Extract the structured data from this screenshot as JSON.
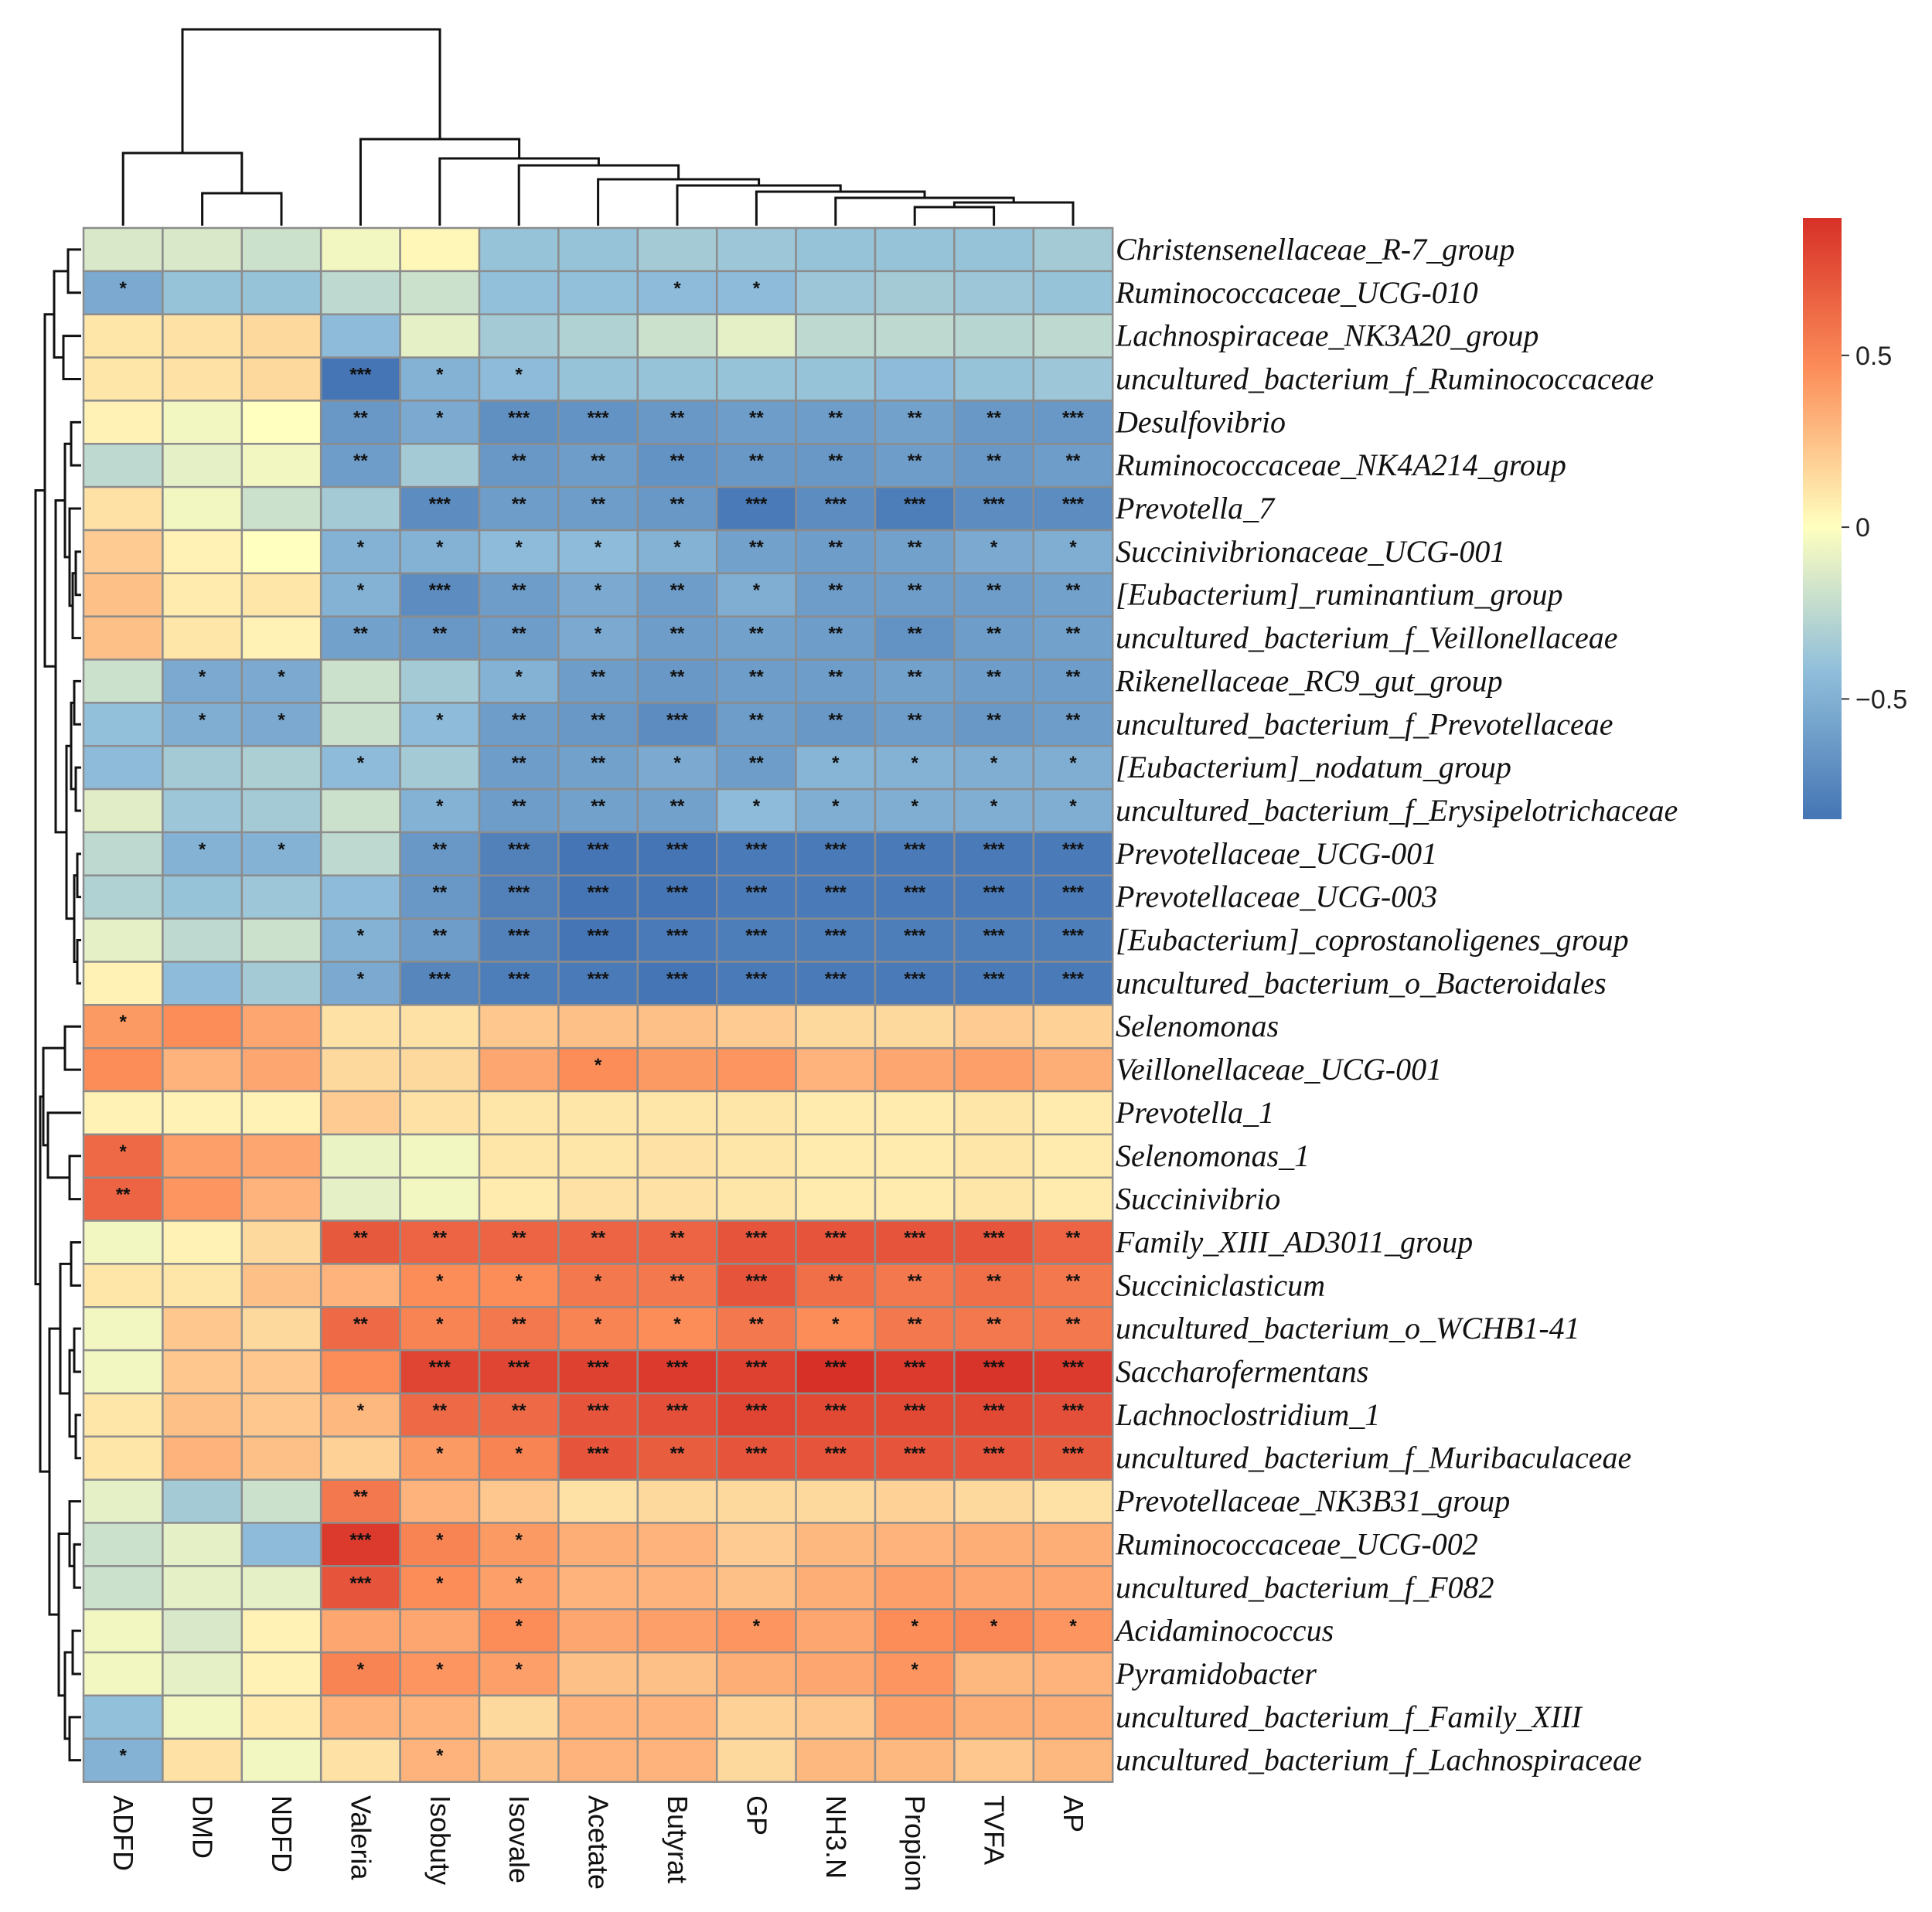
{
  "chart_data": {
    "type": "heatmap",
    "title": "",
    "columns": [
      "ADFD",
      "DMD",
      "NDFD",
      "Valeria",
      "Isobuty",
      "Isovale",
      "Acetate",
      "Butyrat",
      "GP",
      "NH3.N",
      "Propion",
      "TVFA",
      "AP"
    ],
    "rows": [
      "Christensenellaceae_R-7_group",
      "Ruminococcaceae_UCG-010",
      "Lachnospiraceae_NK3A20_group",
      "uncultured_bacterium_f_Ruminococcaceae",
      "Desulfovibrio",
      "Ruminococcaceae_NK4A214_group",
      "Prevotella_7",
      "Succinivibrionaceae_UCG-001",
      "[Eubacterium]_ruminantium_group",
      "uncultured_bacterium_f_Veillonellaceae",
      "Rikenellaceae_RC9_gut_group",
      "uncultured_bacterium_f_Prevotellaceae",
      "[Eubacterium]_nodatum_group",
      "uncultured_bacterium_f_Erysipelotrichaceae",
      "Prevotellaceae_UCG-001",
      "Prevotellaceae_UCG-003",
      "[Eubacterium]_coprostanoligenes_group",
      "uncultured_bacterium_o_Bacteroidales",
      "Selenomonas",
      "Veillonellaceae_UCG-001",
      "Prevotella_1",
      "Selenomonas_1",
      "Succinivibrio",
      "Family_XIII_AD3011_group",
      "Succiniclasticum",
      "uncultured_bacterium_o_WCHB1-41",
      "Saccharofermentans",
      "Lachnoclostridium_1",
      "uncultured_bacterium_f_Muribaculaceae",
      "Prevotellaceae_NK3B31_group",
      "Ruminococcaceae_UCG-002",
      "uncultured_bacterium_f_F082",
      "Acidaminococcus",
      "Pyramidobacter",
      "uncultured_bacterium_f_Family_XIII",
      "uncultured_bacterium_f_Lachnospiraceae"
    ],
    "values": [
      [
        -0.15,
        -0.15,
        -0.2,
        -0.05,
        0.03,
        -0.4,
        -0.4,
        -0.35,
        -0.38,
        -0.4,
        -0.4,
        -0.4,
        -0.35
      ],
      [
        -0.55,
        -0.4,
        -0.4,
        -0.25,
        -0.2,
        -0.42,
        -0.42,
        -0.45,
        -0.45,
        -0.38,
        -0.35,
        -0.38,
        -0.4
      ],
      [
        0.1,
        0.12,
        0.15,
        -0.45,
        -0.1,
        -0.35,
        -0.3,
        -0.2,
        -0.1,
        -0.25,
        -0.25,
        -0.28,
        -0.25
      ],
      [
        0.1,
        0.12,
        0.15,
        -0.85,
        -0.5,
        -0.45,
        -0.4,
        -0.4,
        -0.4,
        -0.4,
        -0.45,
        -0.4,
        -0.38
      ],
      [
        0.05,
        -0.05,
        0.0,
        -0.65,
        -0.55,
        -0.7,
        -0.68,
        -0.65,
        -0.62,
        -0.62,
        -0.6,
        -0.65,
        -0.65
      ],
      [
        -0.25,
        -0.1,
        -0.05,
        -0.62,
        -0.35,
        -0.65,
        -0.62,
        -0.68,
        -0.65,
        -0.65,
        -0.62,
        -0.65,
        -0.62
      ],
      [
        0.12,
        -0.05,
        -0.2,
        -0.35,
        -0.72,
        -0.62,
        -0.62,
        -0.65,
        -0.82,
        -0.72,
        -0.8,
        -0.72,
        -0.72
      ],
      [
        0.2,
        0.05,
        0.0,
        -0.5,
        -0.5,
        -0.45,
        -0.45,
        -0.5,
        -0.6,
        -0.62,
        -0.6,
        -0.55,
        -0.52
      ],
      [
        0.25,
        0.08,
        0.1,
        -0.5,
        -0.72,
        -0.62,
        -0.55,
        -0.62,
        -0.52,
        -0.62,
        -0.62,
        -0.62,
        -0.6
      ],
      [
        0.25,
        0.1,
        0.05,
        -0.6,
        -0.65,
        -0.62,
        -0.55,
        -0.62,
        -0.6,
        -0.62,
        -0.68,
        -0.62,
        -0.6
      ],
      [
        -0.2,
        -0.55,
        -0.55,
        -0.2,
        -0.35,
        -0.5,
        -0.62,
        -0.65,
        -0.62,
        -0.62,
        -0.6,
        -0.62,
        -0.62
      ],
      [
        -0.42,
        -0.52,
        -0.55,
        -0.2,
        -0.45,
        -0.62,
        -0.65,
        -0.72,
        -0.62,
        -0.65,
        -0.62,
        -0.65,
        -0.62
      ],
      [
        -0.45,
        -0.35,
        -0.32,
        -0.45,
        -0.35,
        -0.62,
        -0.6,
        -0.55,
        -0.62,
        -0.48,
        -0.5,
        -0.52,
        -0.52
      ],
      [
        -0.12,
        -0.38,
        -0.35,
        -0.2,
        -0.5,
        -0.62,
        -0.6,
        -0.6,
        -0.45,
        -0.52,
        -0.52,
        -0.52,
        -0.52
      ],
      [
        -0.25,
        -0.5,
        -0.5,
        -0.25,
        -0.65,
        -0.78,
        -0.85,
        -0.85,
        -0.82,
        -0.82,
        -0.82,
        -0.82,
        -0.82
      ],
      [
        -0.3,
        -0.4,
        -0.38,
        -0.45,
        -0.65,
        -0.78,
        -0.85,
        -0.85,
        -0.82,
        -0.82,
        -0.82,
        -0.82,
        -0.82
      ],
      [
        -0.1,
        -0.25,
        -0.2,
        -0.5,
        -0.62,
        -0.78,
        -0.85,
        -0.82,
        -0.8,
        -0.8,
        -0.8,
        -0.8,
        -0.8
      ],
      [
        0.05,
        -0.45,
        -0.35,
        -0.55,
        -0.75,
        -0.8,
        -0.82,
        -0.85,
        -0.82,
        -0.82,
        -0.82,
        -0.82,
        -0.82
      ],
      [
        0.4,
        0.45,
        0.35,
        0.12,
        0.12,
        0.22,
        0.25,
        0.25,
        0.2,
        0.15,
        0.15,
        0.2,
        0.18
      ],
      [
        0.45,
        0.3,
        0.35,
        0.15,
        0.15,
        0.35,
        0.45,
        0.4,
        0.42,
        0.3,
        0.35,
        0.38,
        0.32
      ],
      [
        0.05,
        0.05,
        0.05,
        0.2,
        0.12,
        0.1,
        0.1,
        0.1,
        0.1,
        0.08,
        0.08,
        0.1,
        0.08
      ],
      [
        0.62,
        0.38,
        0.35,
        -0.08,
        -0.05,
        0.1,
        0.1,
        0.12,
        0.1,
        0.08,
        0.08,
        0.1,
        0.08
      ],
      [
        0.65,
        0.42,
        0.3,
        -0.1,
        -0.05,
        0.08,
        0.12,
        0.12,
        0.1,
        0.08,
        0.08,
        0.1,
        0.08
      ],
      [
        -0.05,
        0.05,
        0.15,
        0.7,
        0.65,
        0.65,
        0.65,
        0.65,
        0.72,
        0.72,
        0.72,
        0.72,
        0.65
      ],
      [
        0.1,
        0.1,
        0.25,
        0.3,
        0.45,
        0.45,
        0.55,
        0.55,
        0.72,
        0.6,
        0.55,
        0.6,
        0.55
      ],
      [
        -0.05,
        0.22,
        0.15,
        0.62,
        0.5,
        0.55,
        0.5,
        0.45,
        0.55,
        0.45,
        0.55,
        0.55,
        0.55
      ],
      [
        -0.05,
        0.22,
        0.22,
        0.45,
        0.8,
        0.8,
        0.82,
        0.85,
        0.82,
        0.9,
        0.85,
        0.88,
        0.85
      ],
      [
        0.1,
        0.25,
        0.22,
        0.28,
        0.62,
        0.62,
        0.72,
        0.75,
        0.8,
        0.78,
        0.78,
        0.78,
        0.75
      ],
      [
        0.1,
        0.3,
        0.25,
        0.18,
        0.4,
        0.5,
        0.72,
        0.68,
        0.72,
        0.72,
        0.72,
        0.72,
        0.7
      ],
      [
        -0.1,
        -0.35,
        -0.2,
        0.55,
        0.3,
        0.22,
        0.12,
        0.15,
        0.15,
        0.15,
        0.18,
        0.15,
        0.12
      ],
      [
        -0.2,
        -0.1,
        -0.45,
        0.85,
        0.5,
        0.4,
        0.32,
        0.3,
        0.2,
        0.28,
        0.3,
        0.32,
        0.32
      ],
      [
        -0.2,
        -0.1,
        -0.1,
        0.72,
        0.45,
        0.38,
        0.3,
        0.3,
        0.25,
        0.32,
        0.38,
        0.35,
        0.35
      ],
      [
        -0.05,
        -0.15,
        0.05,
        0.35,
        0.35,
        0.45,
        0.35,
        0.38,
        0.42,
        0.35,
        0.45,
        0.48,
        0.42
      ],
      [
        -0.05,
        -0.1,
        0.05,
        0.5,
        0.42,
        0.38,
        0.25,
        0.25,
        0.32,
        0.35,
        0.42,
        0.28,
        0.3
      ],
      [
        -0.42,
        -0.05,
        0.08,
        0.3,
        0.3,
        0.15,
        0.3,
        0.3,
        0.18,
        0.22,
        0.38,
        0.32,
        0.32
      ],
      [
        -0.5,
        0.12,
        -0.05,
        0.12,
        0.3,
        0.25,
        0.3,
        0.3,
        0.15,
        0.28,
        0.28,
        0.22,
        0.28
      ]
    ],
    "significance": [
      [
        "",
        "",
        "",
        "",
        "",
        "",
        "",
        "",
        "",
        "",
        "",
        "",
        ""
      ],
      [
        "*",
        "",
        "",
        "",
        "",
        "",
        "",
        "*",
        "*",
        "",
        "",
        "",
        ""
      ],
      [
        "",
        "",
        "",
        "",
        "",
        "",
        "",
        "",
        "",
        "",
        "",
        "",
        ""
      ],
      [
        "",
        "",
        "",
        "***",
        "*",
        "*",
        "",
        "",
        "",
        "",
        "",
        "",
        ""
      ],
      [
        "",
        "",
        "",
        "**",
        "*",
        "***",
        "***",
        "**",
        "**",
        "**",
        "**",
        "**",
        "***"
      ],
      [
        "",
        "",
        "",
        "**",
        "",
        "**",
        "**",
        "**",
        "**",
        "**",
        "**",
        "**",
        "**"
      ],
      [
        "",
        "",
        "",
        "",
        "***",
        "**",
        "**",
        "**",
        "***",
        "***",
        "***",
        "***",
        "***"
      ],
      [
        "",
        "",
        "",
        "*",
        "*",
        "*",
        "*",
        "*",
        "**",
        "**",
        "**",
        "*",
        "*"
      ],
      [
        "",
        "",
        "",
        "*",
        "***",
        "**",
        "*",
        "**",
        "*",
        "**",
        "**",
        "**",
        "**"
      ],
      [
        "",
        "",
        "",
        "**",
        "**",
        "**",
        "*",
        "**",
        "**",
        "**",
        "**",
        "**",
        "**"
      ],
      [
        "",
        "*",
        "*",
        "",
        "",
        "*",
        "**",
        "**",
        "**",
        "**",
        "**",
        "**",
        "**"
      ],
      [
        "",
        "*",
        "*",
        "",
        "*",
        "**",
        "**",
        "***",
        "**",
        "**",
        "**",
        "**",
        "**"
      ],
      [
        "",
        "",
        "",
        "*",
        "",
        "**",
        "**",
        "*",
        "**",
        "*",
        "*",
        "*",
        "*"
      ],
      [
        "",
        "",
        "",
        "",
        "*",
        "**",
        "**",
        "**",
        "*",
        "*",
        "*",
        "*",
        "*"
      ],
      [
        "",
        "*",
        "*",
        "",
        "**",
        "***",
        "***",
        "***",
        "***",
        "***",
        "***",
        "***",
        "***"
      ],
      [
        "",
        "",
        "",
        "",
        "**",
        "***",
        "***",
        "***",
        "***",
        "***",
        "***",
        "***",
        "***"
      ],
      [
        "",
        "",
        "",
        "*",
        "**",
        "***",
        "***",
        "***",
        "***",
        "***",
        "***",
        "***",
        "***"
      ],
      [
        "",
        "",
        "",
        "*",
        "***",
        "***",
        "***",
        "***",
        "***",
        "***",
        "***",
        "***",
        "***"
      ],
      [
        "*",
        "",
        "",
        "",
        "",
        "",
        "",
        "",
        "",
        "",
        "",
        "",
        ""
      ],
      [
        "",
        "",
        "",
        "",
        "",
        "",
        "*",
        "",
        "",
        "",
        "",
        "",
        ""
      ],
      [
        "",
        "",
        "",
        "",
        "",
        "",
        "",
        "",
        "",
        "",
        "",
        "",
        ""
      ],
      [
        "*",
        "",
        "",
        "",
        "",
        "",
        "",
        "",
        "",
        "",
        "",
        "",
        ""
      ],
      [
        "**",
        "",
        "",
        "",
        "",
        "",
        "",
        "",
        "",
        "",
        "",
        "",
        ""
      ],
      [
        "",
        "",
        "",
        "**",
        "**",
        "**",
        "**",
        "**",
        "***",
        "***",
        "***",
        "***",
        "**"
      ],
      [
        "",
        "",
        "",
        "",
        "*",
        "*",
        "*",
        "**",
        "***",
        "**",
        "**",
        "**",
        "**"
      ],
      [
        "",
        "",
        "",
        "**",
        "*",
        "**",
        "*",
        "*",
        "**",
        "*",
        "**",
        "**",
        "**"
      ],
      [
        "",
        "",
        "",
        "",
        "***",
        "***",
        "***",
        "***",
        "***",
        "***",
        "***",
        "***",
        "***"
      ],
      [
        "",
        "",
        "",
        "*",
        "**",
        "**",
        "***",
        "***",
        "***",
        "***",
        "***",
        "***",
        "***"
      ],
      [
        "",
        "",
        "",
        "",
        "*",
        "*",
        "***",
        "**",
        "***",
        "***",
        "***",
        "***",
        "***"
      ],
      [
        "",
        "",
        "",
        "**",
        "",
        "",
        "",
        "",
        "",
        "",
        "",
        "",
        ""
      ],
      [
        "",
        "",
        "",
        "***",
        "*",
        "*",
        "",
        "",
        "",
        "",
        "",
        "",
        ""
      ],
      [
        "",
        "",
        "",
        "***",
        "*",
        "*",
        "",
        "",
        "",
        "",
        "",
        "",
        ""
      ],
      [
        "",
        "",
        "",
        "",
        "",
        "*",
        "",
        "",
        "*",
        "",
        "*",
        "*",
        "*"
      ],
      [
        "",
        "",
        "",
        "*",
        "*",
        "*",
        "",
        "",
        "",
        "",
        "*",
        "",
        ""
      ],
      [
        "",
        "",
        "",
        "",
        "",
        "",
        "",
        "",
        "",
        "",
        "",
        "",
        ""
      ],
      [
        "*",
        "",
        "",
        "",
        "*",
        "",
        "",
        "",
        "",
        "",
        "",
        "",
        ""
      ]
    ],
    "color_scale": {
      "min": -0.85,
      "max": 0.9,
      "ticks": [
        0.5,
        0,
        -0.5
      ],
      "tick_labels": [
        "0.5",
        "0",
        "−0.5"
      ],
      "colors": [
        "#4575b4",
        "#91bfdb",
        "#ffffbf",
        "#fc8d59",
        "#d73027"
      ]
    },
    "legend_position": "right"
  }
}
